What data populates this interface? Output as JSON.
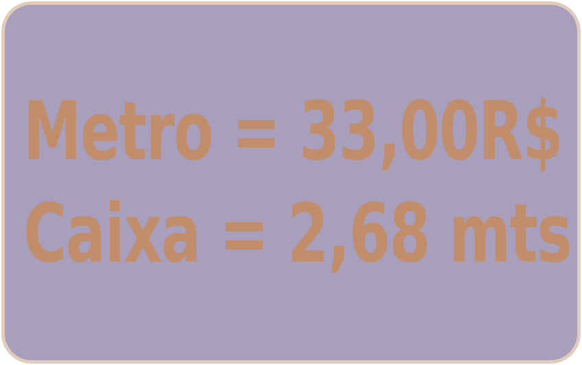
{
  "price_card": {
    "line1": "Metro = 33,00R$",
    "line2": "Caixa = 2,68 mts"
  },
  "colors": {
    "card_background": "#a79fbb",
    "card_border": "#e3cbbb",
    "text": "#c28d6a"
  }
}
